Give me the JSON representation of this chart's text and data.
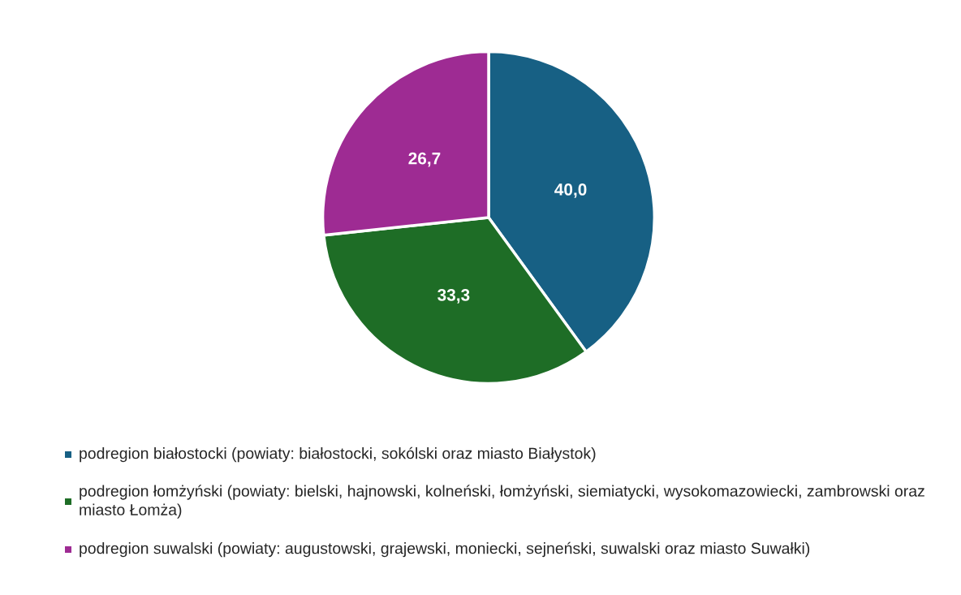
{
  "chart_data": {
    "type": "pie",
    "categories": [
      "podregion białostocki (powiaty: białostocki, sokólski oraz miasto Białystok)",
      "podregion łomżyński (powiaty: bielski, hajnowski, kolneński, łomżyński, siemiatycki, wysokomazowiecki, zambrowski oraz miasto Łomża)",
      "podregion suwalski (powiaty: augustowski, grajewski, moniecki, sejneński, suwalski oraz miasto Suwałki)"
    ],
    "values": [
      40.0,
      33.3,
      26.7
    ],
    "value_labels": [
      "40,0",
      "33,3",
      "26,7"
    ],
    "colors": [
      "#176084",
      "#1e6d26",
      "#9e2b93"
    ],
    "legend": "bottom"
  }
}
